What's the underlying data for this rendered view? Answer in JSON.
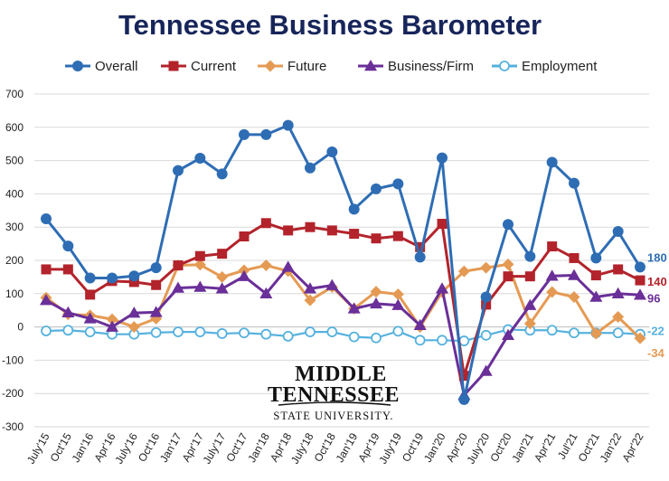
{
  "chart_data": {
    "type": "line",
    "title": "Tennessee Business Barometer",
    "xlabel": "",
    "ylabel": "",
    "ylim": [
      -300,
      700
    ],
    "yticks": [
      -300,
      -200,
      -100,
      0,
      100,
      200,
      300,
      400,
      500,
      600,
      700
    ],
    "grid": "horizontal",
    "legend_position": "top",
    "x": [
      "July'15",
      "Oct'15",
      "Jan'16",
      "Apr'16",
      "July'16",
      "Oct'16",
      "Jan'17",
      "Apr'17",
      "July'17",
      "Oct'17",
      "Jan'18",
      "Apr'18",
      "July'18",
      "Oct'18",
      "Jan'19",
      "Apr'19",
      "July'19",
      "Oct'19",
      "Jan'20",
      "Apr'20",
      "July'20",
      "Oct'20",
      "Jan'21",
      "Apr'21",
      "Jul'21",
      "Oct'21",
      "Jan'22",
      "Apr'22"
    ],
    "xtick_labels": [
      "July'15",
      "Oct'15",
      "Jan'16",
      "Apr'16",
      "July'16",
      "Oct'16",
      "Jan'17",
      "Apr'17",
      "July'17",
      "Oct'17",
      "Jan'18",
      "Apr'18",
      "July'18",
      "Oct'18",
      "Jan'19",
      "Apr'19",
      "July'19",
      "Oct'19",
      "Jan'20",
      "Apr'20",
      "July'20",
      "Oct'20",
      "Jan'21",
      "Apr'21",
      "Jul'21",
      "Oct'21",
      "Jan'22",
      "Apr'22"
    ],
    "series": [
      {
        "name": "Overall",
        "color": "#2e6db4",
        "marker": "circle",
        "end_label": "180",
        "values": [
          325,
          243,
          147,
          147,
          153,
          178,
          470,
          507,
          460,
          578,
          578,
          606,
          478,
          526,
          354,
          415,
          430,
          210,
          508,
          -218,
          90,
          308,
          212,
          495,
          432,
          207,
          287,
          180
        ]
      },
      {
        "name": "Current",
        "color": "#b3232b",
        "marker": "square",
        "end_label": "140",
        "values": [
          173,
          173,
          97,
          138,
          135,
          126,
          185,
          213,
          220,
          272,
          312,
          290,
          300,
          290,
          280,
          266,
          273,
          240,
          310,
          -147,
          67,
          152,
          152,
          242,
          207,
          155,
          173,
          140
        ]
      },
      {
        "name": "Future",
        "color": "#e59a53",
        "marker": "diamond",
        "end_label": "-34",
        "values": [
          88,
          38,
          35,
          23,
          0,
          25,
          185,
          187,
          150,
          170,
          185,
          168,
          80,
          120,
          55,
          106,
          98,
          0,
          105,
          167,
          178,
          188,
          10,
          105,
          90,
          -20,
          30,
          -34
        ]
      },
      {
        "name": "Business/Firm",
        "color": "#6a2f98",
        "marker": "triangle",
        "end_label": "96",
        "values": [
          80,
          43,
          25,
          0,
          42,
          44,
          117,
          120,
          115,
          152,
          100,
          180,
          115,
          125,
          55,
          70,
          65,
          5,
          115,
          -205,
          -133,
          -25,
          65,
          153,
          155,
          90,
          100,
          96
        ]
      },
      {
        "name": "Employment",
        "color": "#56b1de",
        "marker": "circle-open",
        "end_label": "-22",
        "values": [
          -12,
          -10,
          -15,
          -22,
          -22,
          -17,
          -15,
          -15,
          -20,
          -18,
          -22,
          -28,
          -15,
          -15,
          -30,
          -33,
          -13,
          -40,
          -40,
          -42,
          -25,
          -8,
          -10,
          -10,
          -18,
          -18,
          -18,
          -22
        ]
      }
    ]
  },
  "logo": {
    "line1": "MIDDLE",
    "line2": "TENNESSEE",
    "line3": "STATE UNIVERSITY."
  }
}
